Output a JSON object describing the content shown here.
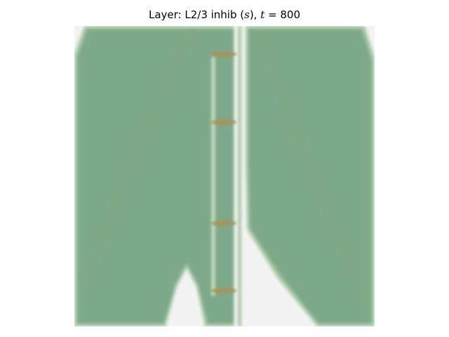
{
  "title": {
    "prefix": "Layer: L2/3 inhib (",
    "var_s": "s",
    "middle": "), ",
    "var_t": "t",
    "suffix": " = 800"
  },
  "colors": {
    "background": "#f3f3f3",
    "tissue": "#7ea98a",
    "tissue_edge": "#a9cca5",
    "inner_edge": "#cfe6c8",
    "activity": "#a8935a"
  }
}
